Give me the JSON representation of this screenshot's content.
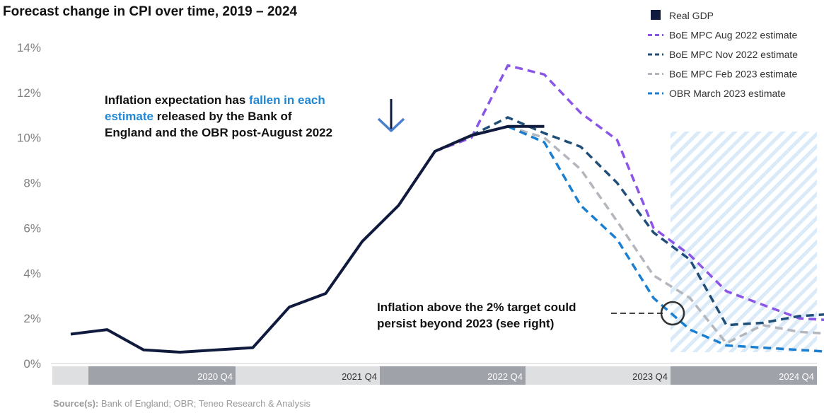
{
  "chart_data": {
    "type": "line",
    "title": "Forecast change in CPI over time, 2019 – 2024",
    "y_ticks": [
      "0%",
      "2%",
      "4%",
      "6%",
      "8%",
      "10%",
      "12%",
      "14%"
    ],
    "ylim": [
      0,
      14
    ],
    "x_labels": [
      "2020 Q4",
      "2021 Q4",
      "2022 Q4",
      "2023 Q4",
      "2024 Q4"
    ],
    "grid": false,
    "legend_position": "top-right",
    "series": [
      {
        "name": "Real GDP",
        "color": "#0f1a3c",
        "style": "solid",
        "x": [
          0,
          1,
          2,
          3,
          4,
          5,
          6,
          7,
          8,
          9,
          10,
          11,
          12,
          13
        ],
        "values": [
          1.3,
          1.5,
          0.6,
          0.5,
          0.6,
          0.7,
          2.5,
          3.1,
          5.4,
          7.0,
          9.4,
          10.1,
          10.5,
          10.5
        ]
      },
      {
        "name": "BoE MPC Aug 2022 estimate",
        "color": "#8b55e8",
        "style": "dashed",
        "x": [
          10,
          11,
          12,
          13,
          14,
          15,
          16,
          17,
          18,
          19,
          20,
          21
        ],
        "values": [
          9.4,
          10.0,
          13.2,
          12.8,
          11.1,
          9.9,
          6.0,
          4.8,
          3.2,
          2.6,
          2.0,
          1.9
        ]
      },
      {
        "name": "BoE MPC Nov 2022 estimate",
        "color": "#1f4e79",
        "style": "dashed",
        "x": [
          11,
          12,
          13,
          14,
          15,
          16,
          17,
          18,
          19,
          20,
          21
        ],
        "values": [
          10.1,
          10.9,
          10.2,
          9.6,
          8.0,
          5.8,
          4.6,
          1.7,
          1.8,
          2.1,
          2.2
        ]
      },
      {
        "name": "BoE MPC Feb 2023 estimate",
        "color": "#b3b6bd",
        "style": "dashed",
        "x": [
          12,
          13,
          14,
          15,
          16,
          17,
          18,
          19,
          20,
          21
        ],
        "values": [
          10.5,
          10.0,
          8.6,
          6.3,
          3.9,
          2.9,
          0.9,
          1.7,
          1.4,
          1.3
        ]
      },
      {
        "name": "OBR March 2023 estimate",
        "color": "#1b7fd1",
        "style": "dashed",
        "x": [
          12,
          13,
          14,
          15,
          16,
          17,
          18,
          19,
          20,
          21
        ],
        "values": [
          10.5,
          9.8,
          7.0,
          5.5,
          2.9,
          1.5,
          0.8,
          0.7,
          0.6,
          0.5
        ]
      }
    ],
    "annotations": {
      "callout_top": [
        [
          {
            "text": "Inflation expectation has ",
            "color": "#111111"
          },
          {
            "text": "fallen in each",
            "color": "#1f87d6"
          }
        ],
        [
          {
            "text": "estimate",
            "color": "#1f87d6"
          },
          {
            "text": " released by the Bank of",
            "color": "#111111"
          }
        ],
        [
          {
            "text": "England and the OBR post-August 2022",
            "color": "#111111"
          }
        ]
      ],
      "callout_bottom": [
        "Inflation above the 2% target could",
        "persist beyond 2023 (see right)"
      ]
    },
    "source": {
      "label": "Source(s):",
      "text": " Bank of England; OBR; Teneo Research & Analysis"
    }
  }
}
